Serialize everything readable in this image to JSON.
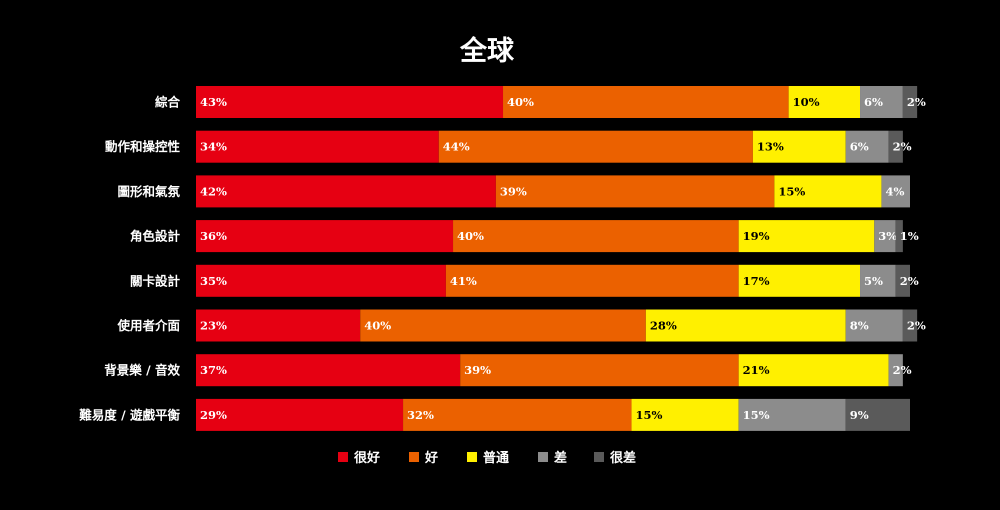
{
  "chart_data": {
    "type": "bar",
    "orientation": "horizontal",
    "stacked": true,
    "title": "全球",
    "categories": [
      "綜合",
      "動作和操控性",
      "圖形和氣氛",
      "角色設計",
      "關卡設計",
      "使用者介面",
      "背景樂 / 音效",
      "難易度 / 遊戲平衡"
    ],
    "series": [
      {
        "name": "很好",
        "color": "#e60012",
        "label_color": "#ffffff",
        "values": [
          43,
          34,
          42,
          36,
          35,
          23,
          37,
          29
        ]
      },
      {
        "name": "好",
        "color": "#eb6100",
        "label_color": "#ffffff",
        "values": [
          40,
          44,
          39,
          40,
          41,
          40,
          39,
          32
        ]
      },
      {
        "name": "普通",
        "color": "#fff000",
        "label_color": "#000000",
        "values": [
          10,
          13,
          15,
          19,
          17,
          28,
          21,
          15
        ]
      },
      {
        "name": "差",
        "color": "#8c8c8c",
        "label_color": "#ffffff",
        "values": [
          6,
          6,
          4,
          3,
          5,
          8,
          2,
          15
        ]
      },
      {
        "name": "很差",
        "color": "#5a5a5a",
        "label_color": "#ffffff",
        "values": [
          2,
          2,
          0,
          1,
          2,
          2,
          0,
          9
        ]
      }
    ],
    "value_suffix": "%",
    "xlim": [
      0,
      100
    ],
    "grid": false,
    "legend_position": "bottom"
  }
}
